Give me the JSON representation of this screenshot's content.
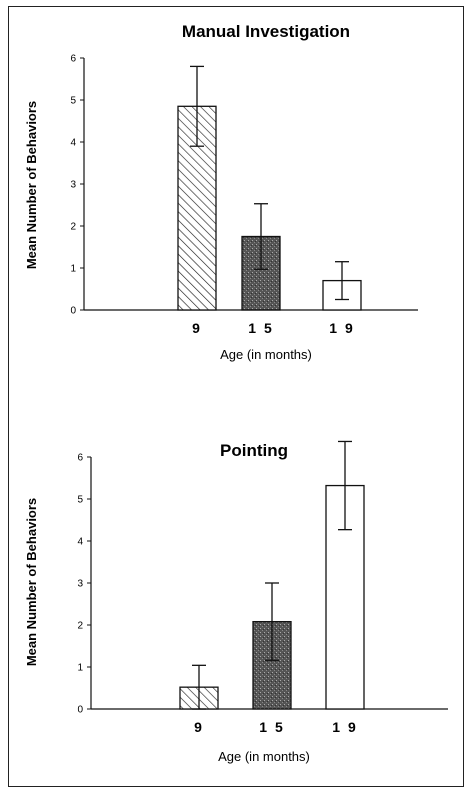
{
  "chart_data": [
    {
      "type": "bar",
      "title": "Manual Investigation",
      "xlabel": "Age (in months)",
      "ylabel": "Mean Number of Behaviors",
      "categories": [
        "9",
        "15",
        "19"
      ],
      "values": [
        4.85,
        1.75,
        0.7
      ],
      "error": [
        0.95,
        0.78,
        0.45
      ],
      "ylim": [
        0,
        6
      ],
      "yticks": [
        "0",
        "1",
        "2",
        "3",
        "4",
        "5",
        "6"
      ],
      "fills": [
        "hatched",
        "dark-stipple",
        "white"
      ],
      "grid": false,
      "legend": "none"
    },
    {
      "type": "bar",
      "title": "Pointing",
      "xlabel": "Age (in months)",
      "ylabel": "Mean Number of Behaviors",
      "categories": [
        "9",
        "15",
        "19"
      ],
      "values": [
        0.52,
        2.08,
        5.32
      ],
      "error": [
        0.52,
        0.92,
        1.05
      ],
      "ylim": [
        0,
        6
      ],
      "yticks": [
        "0",
        "1",
        "2",
        "3",
        "4",
        "5",
        "6"
      ],
      "fills": [
        "hatched",
        "dark-stipple",
        "white"
      ],
      "grid": false,
      "legend": "none"
    }
  ]
}
